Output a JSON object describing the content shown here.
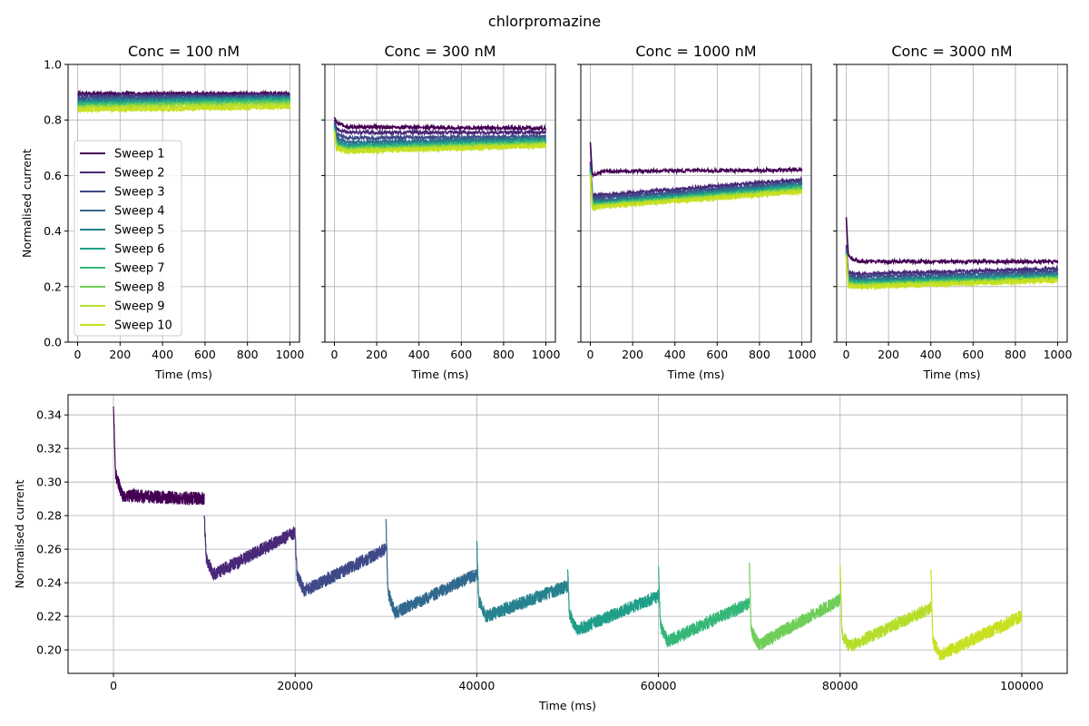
{
  "figure_title": "chlorpromazine",
  "chart_data": [
    {
      "type": "line",
      "title": "Conc = 100 nM",
      "xlabel": "Time (ms)",
      "ylabel": "Normalised current",
      "xlim": [
        -45,
        1045
      ],
      "ylim": [
        0.0,
        1.0
      ],
      "xticks": [
        0,
        200,
        400,
        600,
        800,
        1000
      ],
      "yticks": [
        0.0,
        0.2,
        0.4,
        0.6,
        0.8,
        1.0
      ],
      "grid": true,
      "legend": "center-left",
      "series": [
        {
          "name": "Sweep 1",
          "color": "#440154",
          "x": [
            0,
            1000
          ],
          "y": [
            0.895,
            0.895
          ]
        },
        {
          "name": "Sweep 2",
          "color": "#482878",
          "x": [
            0,
            1000
          ],
          "y": [
            0.888,
            0.89
          ]
        },
        {
          "name": "Sweep 3",
          "color": "#3e4989",
          "x": [
            0,
            1000
          ],
          "y": [
            0.88,
            0.885
          ]
        },
        {
          "name": "Sweep 4",
          "color": "#31688e",
          "x": [
            0,
            1000
          ],
          "y": [
            0.872,
            0.88
          ]
        },
        {
          "name": "Sweep 5",
          "color": "#26828e",
          "x": [
            0,
            1000
          ],
          "y": [
            0.865,
            0.878
          ]
        },
        {
          "name": "Sweep 6",
          "color": "#1f9e89",
          "x": [
            0,
            1000
          ],
          "y": [
            0.86,
            0.875
          ]
        },
        {
          "name": "Sweep 7",
          "color": "#35b779",
          "x": [
            0,
            1000
          ],
          "y": [
            0.855,
            0.87
          ]
        },
        {
          "name": "Sweep 8",
          "color": "#6ece58",
          "x": [
            0,
            1000
          ],
          "y": [
            0.85,
            0.862
          ]
        },
        {
          "name": "Sweep 9",
          "color": "#b5de2b",
          "x": [
            0,
            1000
          ],
          "y": [
            0.843,
            0.855
          ]
        },
        {
          "name": "Sweep 10",
          "color": "#c8e020",
          "x": [
            0,
            1000
          ],
          "y": [
            0.835,
            0.845
          ]
        }
      ]
    },
    {
      "type": "line",
      "title": "Conc = 300 nM",
      "xlabel": "Time (ms)",
      "ylabel": "",
      "xlim": [
        -45,
        1045
      ],
      "ylim": [
        0.0,
        1.0
      ],
      "xticks": [
        0,
        200,
        400,
        600,
        800,
        1000
      ],
      "yticks": [
        0.0,
        0.2,
        0.4,
        0.6,
        0.8,
        1.0
      ],
      "grid": true,
      "series": [
        {
          "name": "Sweep 1",
          "color": "#440154",
          "x": [
            0,
            10,
            60,
            1000
          ],
          "y": [
            0.81,
            0.79,
            0.775,
            0.77
          ]
        },
        {
          "name": "Sweep 2",
          "color": "#482878",
          "x": [
            0,
            10,
            60,
            1000
          ],
          "y": [
            0.8,
            0.77,
            0.755,
            0.755
          ]
        },
        {
          "name": "Sweep 3",
          "color": "#3e4989",
          "x": [
            0,
            10,
            60,
            1000
          ],
          "y": [
            0.79,
            0.75,
            0.735,
            0.74
          ]
        },
        {
          "name": "Sweep 4",
          "color": "#31688e",
          "x": [
            0,
            10,
            60,
            1000
          ],
          "y": [
            0.785,
            0.735,
            0.72,
            0.735
          ]
        },
        {
          "name": "Sweep 5",
          "color": "#26828e",
          "x": [
            0,
            10,
            60,
            1000
          ],
          "y": [
            0.78,
            0.725,
            0.71,
            0.73
          ]
        },
        {
          "name": "Sweep 6",
          "color": "#1f9e89",
          "x": [
            0,
            10,
            60,
            1000
          ],
          "y": [
            0.775,
            0.715,
            0.705,
            0.725
          ]
        },
        {
          "name": "Sweep 7",
          "color": "#35b779",
          "x": [
            0,
            10,
            60,
            1000
          ],
          "y": [
            0.77,
            0.71,
            0.7,
            0.72
          ]
        },
        {
          "name": "Sweep 8",
          "color": "#6ece58",
          "x": [
            0,
            10,
            60,
            1000
          ],
          "y": [
            0.765,
            0.705,
            0.695,
            0.715
          ]
        },
        {
          "name": "Sweep 9",
          "color": "#b5de2b",
          "x": [
            0,
            10,
            60,
            1000
          ],
          "y": [
            0.76,
            0.7,
            0.69,
            0.71
          ]
        },
        {
          "name": "Sweep 10",
          "color": "#c8e020",
          "x": [
            0,
            10,
            60,
            1000
          ],
          "y": [
            0.755,
            0.695,
            0.685,
            0.705
          ]
        }
      ]
    },
    {
      "type": "line",
      "title": "Conc = 1000 nM",
      "xlabel": "Time (ms)",
      "ylabel": "",
      "xlim": [
        -45,
        1045
      ],
      "ylim": [
        0.0,
        1.0
      ],
      "xticks": [
        0,
        200,
        400,
        600,
        800,
        1000
      ],
      "yticks": [
        0.0,
        0.2,
        0.4,
        0.6,
        0.8,
        1.0
      ],
      "grid": true,
      "series": [
        {
          "name": "Sweep 1",
          "color": "#440154",
          "x": [
            0,
            10,
            60,
            1000
          ],
          "y": [
            0.72,
            0.6,
            0.615,
            0.62
          ]
        },
        {
          "name": "Sweep 2",
          "color": "#482878",
          "x": [
            0,
            10,
            60,
            1000
          ],
          "y": [
            0.65,
            0.53,
            0.53,
            0.585
          ]
        },
        {
          "name": "Sweep 3",
          "color": "#3e4989",
          "x": [
            0,
            10,
            60,
            1000
          ],
          "y": [
            0.64,
            0.52,
            0.52,
            0.575
          ]
        },
        {
          "name": "Sweep 4",
          "color": "#31688e",
          "x": [
            0,
            10,
            60,
            1000
          ],
          "y": [
            0.63,
            0.51,
            0.51,
            0.57
          ]
        },
        {
          "name": "Sweep 5",
          "color": "#26828e",
          "x": [
            0,
            10,
            60,
            1000
          ],
          "y": [
            0.625,
            0.505,
            0.505,
            0.565
          ]
        },
        {
          "name": "Sweep 6",
          "color": "#1f9e89",
          "x": [
            0,
            10,
            60,
            1000
          ],
          "y": [
            0.62,
            0.5,
            0.5,
            0.56
          ]
        },
        {
          "name": "Sweep 7",
          "color": "#35b779",
          "x": [
            0,
            10,
            60,
            1000
          ],
          "y": [
            0.615,
            0.495,
            0.497,
            0.555
          ]
        },
        {
          "name": "Sweep 8",
          "color": "#6ece58",
          "x": [
            0,
            10,
            60,
            1000
          ],
          "y": [
            0.61,
            0.49,
            0.495,
            0.55
          ]
        },
        {
          "name": "Sweep 9",
          "color": "#b5de2b",
          "x": [
            0,
            10,
            60,
            1000
          ],
          "y": [
            0.605,
            0.485,
            0.49,
            0.545
          ]
        },
        {
          "name": "Sweep 10",
          "color": "#c8e020",
          "x": [
            0,
            10,
            60,
            1000
          ],
          "y": [
            0.6,
            0.48,
            0.488,
            0.54
          ]
        }
      ]
    },
    {
      "type": "line",
      "title": "Conc = 3000 nM",
      "xlabel": "Time (ms)",
      "ylabel": "",
      "xlim": [
        -45,
        1045
      ],
      "ylim": [
        0.0,
        1.0
      ],
      "xticks": [
        0,
        200,
        400,
        600,
        800,
        1000
      ],
      "yticks": [
        0.0,
        0.2,
        0.4,
        0.6,
        0.8,
        1.0
      ],
      "grid": true,
      "series": [
        {
          "name": "Sweep 1",
          "color": "#440154",
          "x": [
            0,
            10,
            60,
            1000
          ],
          "y": [
            0.45,
            0.31,
            0.29,
            0.29
          ]
        },
        {
          "name": "Sweep 2",
          "color": "#482878",
          "x": [
            0,
            10,
            60,
            1000
          ],
          "y": [
            0.35,
            0.25,
            0.245,
            0.265
          ]
        },
        {
          "name": "Sweep 3",
          "color": "#3e4989",
          "x": [
            0,
            10,
            60,
            1000
          ],
          "y": [
            0.34,
            0.24,
            0.235,
            0.255
          ]
        },
        {
          "name": "Sweep 4",
          "color": "#31688e",
          "x": [
            0,
            10,
            60,
            1000
          ],
          "y": [
            0.33,
            0.23,
            0.225,
            0.245
          ]
        },
        {
          "name": "Sweep 5",
          "color": "#26828e",
          "x": [
            0,
            10,
            60,
            1000
          ],
          "y": [
            0.325,
            0.225,
            0.22,
            0.24
          ]
        },
        {
          "name": "Sweep 6",
          "color": "#1f9e89",
          "x": [
            0,
            10,
            60,
            1000
          ],
          "y": [
            0.32,
            0.22,
            0.215,
            0.235
          ]
        },
        {
          "name": "Sweep 7",
          "color": "#35b779",
          "x": [
            0,
            10,
            60,
            1000
          ],
          "y": [
            0.32,
            0.215,
            0.21,
            0.232
          ]
        },
        {
          "name": "Sweep 8",
          "color": "#6ece58",
          "x": [
            0,
            10,
            60,
            1000
          ],
          "y": [
            0.315,
            0.21,
            0.205,
            0.23
          ]
        },
        {
          "name": "Sweep 9",
          "color": "#b5de2b",
          "x": [
            0,
            10,
            60,
            1000
          ],
          "y": [
            0.315,
            0.205,
            0.202,
            0.226
          ]
        },
        {
          "name": "Sweep 10",
          "color": "#c8e020",
          "x": [
            0,
            10,
            60,
            1000
          ],
          "y": [
            0.31,
            0.2,
            0.198,
            0.22
          ]
        }
      ]
    },
    {
      "type": "line",
      "title": "",
      "xlabel": "Time (ms)",
      "ylabel": "Normalised current",
      "xlim": [
        -5000,
        105000
      ],
      "ylim": [
        0.186,
        0.352
      ],
      "xticks": [
        0,
        20000,
        40000,
        60000,
        80000,
        100000
      ],
      "yticks": [
        0.2,
        0.22,
        0.24,
        0.26,
        0.28,
        0.3,
        0.32,
        0.34
      ],
      "grid": true,
      "segments": [
        {
          "color": "#440154",
          "x": [
            0,
            200,
            1000,
            10000
          ],
          "y": [
            0.345,
            0.305,
            0.292,
            0.29
          ]
        },
        {
          "color": "#482878",
          "x": [
            10000,
            10200,
            11000,
            20000
          ],
          "y": [
            0.28,
            0.255,
            0.245,
            0.27
          ]
        },
        {
          "color": "#3e4989",
          "x": [
            20000,
            20200,
            21000,
            30000
          ],
          "y": [
            0.268,
            0.245,
            0.235,
            0.26
          ]
        },
        {
          "color": "#31688e",
          "x": [
            30000,
            30200,
            31000,
            40000
          ],
          "y": [
            0.278,
            0.235,
            0.222,
            0.245
          ]
        },
        {
          "color": "#26828e",
          "x": [
            40000,
            40200,
            41000,
            50000
          ],
          "y": [
            0.265,
            0.23,
            0.22,
            0.238
          ]
        },
        {
          "color": "#1f9e89",
          "x": [
            50000,
            50200,
            51000,
            60000
          ],
          "y": [
            0.248,
            0.222,
            0.212,
            0.232
          ]
        },
        {
          "color": "#35b779",
          "x": [
            60000,
            60200,
            61000,
            70000
          ],
          "y": [
            0.25,
            0.215,
            0.205,
            0.228
          ]
        },
        {
          "color": "#6ece58",
          "x": [
            70000,
            70200,
            71000,
            80000
          ],
          "y": [
            0.252,
            0.212,
            0.203,
            0.23
          ]
        },
        {
          "color": "#b5de2b",
          "x": [
            80000,
            80200,
            81000,
            90000
          ],
          "y": [
            0.25,
            0.21,
            0.202,
            0.225
          ]
        },
        {
          "color": "#c8e020",
          "x": [
            90000,
            90200,
            91000,
            100000
          ],
          "y": [
            0.248,
            0.205,
            0.197,
            0.22
          ]
        }
      ]
    }
  ]
}
